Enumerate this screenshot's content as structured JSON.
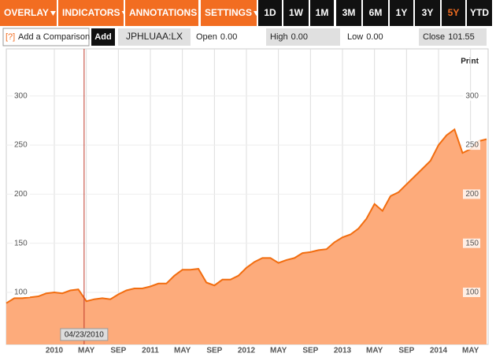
{
  "toolbar": {
    "menus": [
      "OVERLAY",
      "INDICATORS",
      "ANNOTATIONS",
      "SETTINGS"
    ],
    "ranges": [
      "1D",
      "1W",
      "1M",
      "3M",
      "6M",
      "1Y",
      "3Y",
      "5Y",
      "YTD"
    ],
    "selected_range": "5Y",
    "help": "[?]",
    "comparison_placeholder": "Add a Comparison",
    "add_button": "Add",
    "ticker": "JPHLUAA:LX",
    "quotes": [
      {
        "name": "Open",
        "value": 0,
        "value_label": "0.00"
      },
      {
        "name": "High",
        "value": 0,
        "value_label": "0.00"
      },
      {
        "name": "Low",
        "value": 0,
        "value_label": "0.00"
      },
      {
        "name": "Close",
        "value": 101.55
      }
    ]
  },
  "chart_data": {
    "type": "area",
    "print_label": "Print",
    "crosshair": "04/23/2010",
    "color": "#f26d0f",
    "fill": "#fdab7b",
    "grid": true,
    "x": [
      "2009-07",
      "2009-08",
      "2009-09",
      "2009-10",
      "2009-11",
      "2009-12",
      "2010-01",
      "2010-02",
      "2010-03",
      "2010-04",
      "2010-05",
      "2010-06",
      "2010-07",
      "2010-08",
      "2010-09",
      "2010-10",
      "2010-11",
      "2010-12",
      "2011-01",
      "2011-02",
      "2011-03",
      "2011-04",
      "2011-05",
      "2011-06",
      "2011-07",
      "2011-08",
      "2011-09",
      "2011-10",
      "2011-11",
      "2011-12",
      "2012-01",
      "2012-02",
      "2012-03",
      "2012-04",
      "2012-05",
      "2012-06",
      "2012-07",
      "2012-08",
      "2012-09",
      "2012-10",
      "2012-11",
      "2012-12",
      "2013-01",
      "2013-02",
      "2013-03",
      "2013-04",
      "2013-05",
      "2013-06",
      "2013-07",
      "2013-08",
      "2013-09",
      "2013-10",
      "2013-11",
      "2013-12",
      "2014-01",
      "2014-02",
      "2014-03",
      "2014-04",
      "2014-05",
      "2014-06",
      "2014-07"
    ],
    "values": [
      89,
      94,
      94,
      95,
      96,
      99,
      100,
      99,
      102,
      103,
      91,
      93,
      94,
      93,
      98,
      102,
      104,
      104,
      106,
      109,
      109,
      117,
      123,
      123,
      124,
      110,
      107,
      113,
      113,
      117,
      125,
      131,
      135,
      135,
      130,
      133,
      135,
      140,
      141,
      143,
      144,
      151,
      156,
      159,
      165,
      175,
      190,
      183,
      198,
      202,
      210,
      218,
      226,
      234,
      250,
      260,
      266,
      242,
      246,
      254,
      256
    ],
    "xlim": [
      "2009-07",
      "2014-07"
    ],
    "xticks": [
      {
        "value": "2010-01",
        "label": "2010"
      },
      {
        "value": "2010-05",
        "label": "MAY"
      },
      {
        "value": "2010-09",
        "label": "SEP"
      },
      {
        "value": "2011-01",
        "label": "2011"
      },
      {
        "value": "2011-05",
        "label": "MAY"
      },
      {
        "value": "2011-09",
        "label": "SEP"
      },
      {
        "value": "2012-01",
        "label": "2012"
      },
      {
        "value": "2012-05",
        "label": "MAY"
      },
      {
        "value": "2012-09",
        "label": "SEP"
      },
      {
        "value": "2013-01",
        "label": "2013"
      },
      {
        "value": "2013-05",
        "label": "MAY"
      },
      {
        "value": "2013-09",
        "label": "SEP"
      },
      {
        "value": "2014-01",
        "label": "2014"
      },
      {
        "value": "2014-05",
        "label": "MAY"
      }
    ],
    "ylim": [
      47,
      348
    ],
    "yticks": [
      100,
      150,
      200,
      250,
      300
    ]
  }
}
